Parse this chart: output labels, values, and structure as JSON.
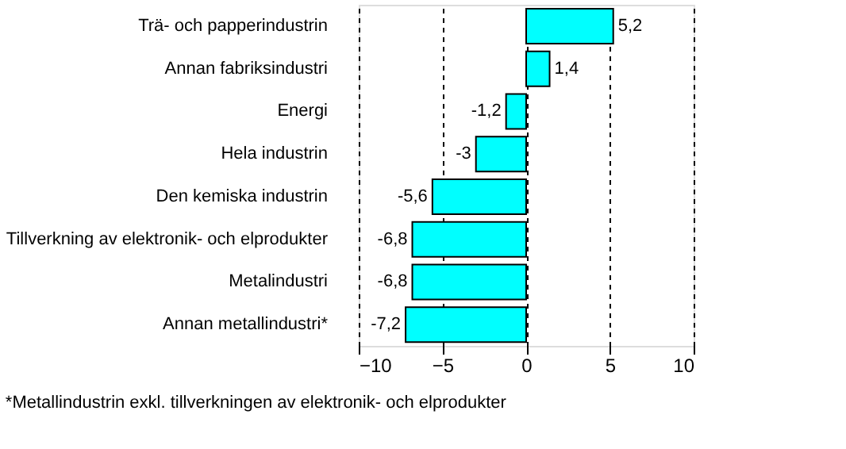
{
  "chart_data": {
    "type": "bar",
    "orientation": "horizontal",
    "categories": [
      "Trä- och papperindustrin",
      "Annan fabriksindustri",
      "Energi",
      "Hela industrin",
      "Den kemiska industrin",
      "Tillverkning av elektronik- och elprodukter",
      "Metalindustri",
      "Annan metallindustri*"
    ],
    "values": [
      5.2,
      1.4,
      -1.2,
      -3,
      -5.6,
      -6.8,
      -6.8,
      -7.2
    ],
    "value_labels": [
      "5,2",
      "1,4",
      "-1,2",
      "-3",
      "-5,6",
      "-6,8",
      "-6,8",
      "-7,2"
    ],
    "color": "#00ffff",
    "xlim": [
      -10,
      10
    ],
    "xticks": [
      -10,
      -5,
      0,
      5,
      10
    ],
    "grid": "x",
    "annotations": [
      "*Metallindustrin exkl. tillverkningen av elektronik- och elprodukter"
    ]
  }
}
